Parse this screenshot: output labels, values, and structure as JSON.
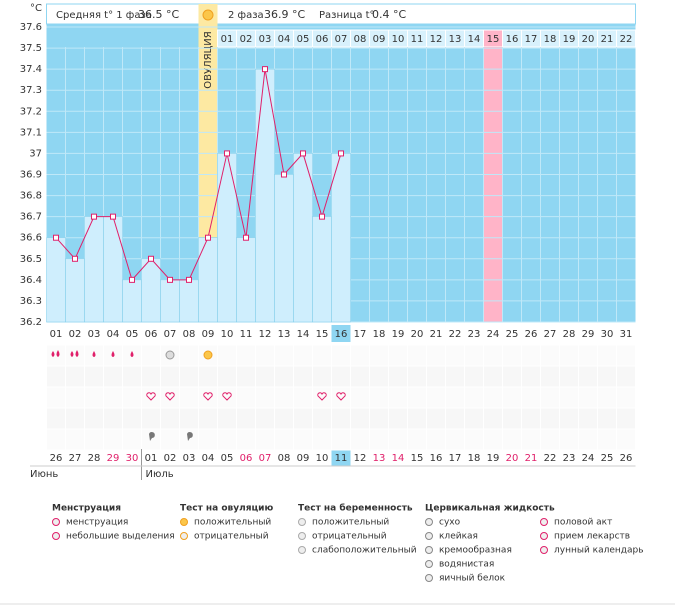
{
  "header": {
    "phase1_label": "Средняя t° 1 фаза",
    "phase1_value": "36.5 °C",
    "phase2_label": "2 фаза",
    "phase2_value": "36.9 °C",
    "diff_label": "Разница t°",
    "diff_value": "0.4 °C"
  },
  "ovulation_label": "ОВУЛЯЦИЯ",
  "chart_data": {
    "type": "line",
    "y_unit": "°C",
    "categories": [
      "01",
      "02",
      "03",
      "04",
      "05",
      "06",
      "07",
      "08",
      "09",
      "10",
      "11",
      "12",
      "13",
      "14",
      "15",
      "16",
      "17",
      "18",
      "19",
      "20",
      "21",
      "22",
      "23",
      "24",
      "25",
      "26",
      "27",
      "28",
      "29",
      "30",
      "31"
    ],
    "luteal_days": [
      "01",
      "02",
      "03",
      "04",
      "05",
      "06",
      "07",
      "08",
      "09",
      "10",
      "11",
      "12",
      "13",
      "14",
      "15",
      "16",
      "17",
      "18",
      "19",
      "20",
      "21",
      "22"
    ],
    "values": [
      36.6,
      36.5,
      36.7,
      36.7,
      36.4,
      36.5,
      36.4,
      36.4,
      36.6,
      37.0,
      36.6,
      37.4,
      36.9,
      37.0,
      36.7,
      37.0,
      null,
      null,
      null,
      null,
      null,
      null,
      null,
      null,
      null,
      null,
      null,
      null,
      null,
      null,
      null
    ],
    "color": "#e0206a",
    "bar_color": "#cfeefd",
    "background": "#8fd6f2",
    "ylim": [
      36.2,
      37.6
    ],
    "yticks": [
      36.2,
      36.3,
      36.4,
      36.5,
      36.6,
      36.7,
      36.8,
      36.9,
      37,
      37.1,
      37.2,
      37.3,
      37.4,
      37.5,
      37.6
    ],
    "grid": true
  },
  "calendar": {
    "dates": [
      "26",
      "27",
      "28",
      "29",
      "30",
      "01",
      "02",
      "03",
      "04",
      "05",
      "06",
      "07",
      "08",
      "09",
      "10",
      "11",
      "12",
      "13",
      "14",
      "15",
      "16",
      "17",
      "18",
      "19",
      "20",
      "21",
      "22",
      "23",
      "24",
      "25",
      "26"
    ],
    "months": [
      "Июнь",
      "Июль"
    ]
  },
  "legend": [
    {
      "title": "Менструация",
      "items": [
        "менструация",
        "небольшие выделения"
      ]
    },
    {
      "title": "Тест на овуляцию",
      "items": [
        "положительный",
        "отрицательный"
      ]
    },
    {
      "title": "Тест на беременность",
      "items": [
        "положительный",
        "отрицательный",
        "слабоположительный"
      ]
    },
    {
      "title": "Цервикальная жидкость",
      "items": [
        "сухо",
        "клейкая",
        "кремообразная",
        "водянистая",
        "яичный белок"
      ]
    },
    {
      "items": [
        "половой акт",
        "прием лекарств",
        "лунный календарь"
      ]
    }
  ]
}
